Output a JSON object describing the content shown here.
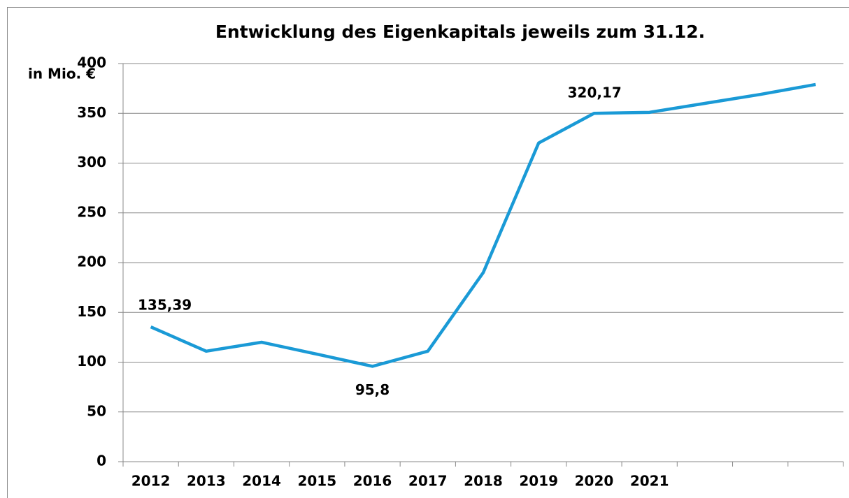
{
  "chart_data": {
    "type": "line",
    "title": "Entwicklung des Eigenkapitals jeweils zum 31.12.",
    "y_label": "in Mio. €",
    "categories": [
      "2012",
      "2013",
      "2014",
      "2015",
      "2016",
      "2017",
      "2018",
      "2019",
      "2020",
      "2021",
      null,
      null,
      null
    ],
    "series": [
      {
        "name": "Eigenkapital",
        "color": "#1a9ad6",
        "values": [
          135.39,
          111,
          120,
          108,
          95.8,
          111,
          190,
          320.17,
          350,
          351,
          360,
          369,
          379
        ],
        "value_labels": [
          "135,39",
          null,
          null,
          null,
          "95,8",
          null,
          null,
          "320,17",
          null,
          null,
          null,
          null,
          null
        ]
      }
    ],
    "ylim": [
      0,
      400
    ],
    "yticks": [
      0,
      50,
      100,
      150,
      200,
      250,
      300,
      350,
      400
    ],
    "grid": true
  }
}
